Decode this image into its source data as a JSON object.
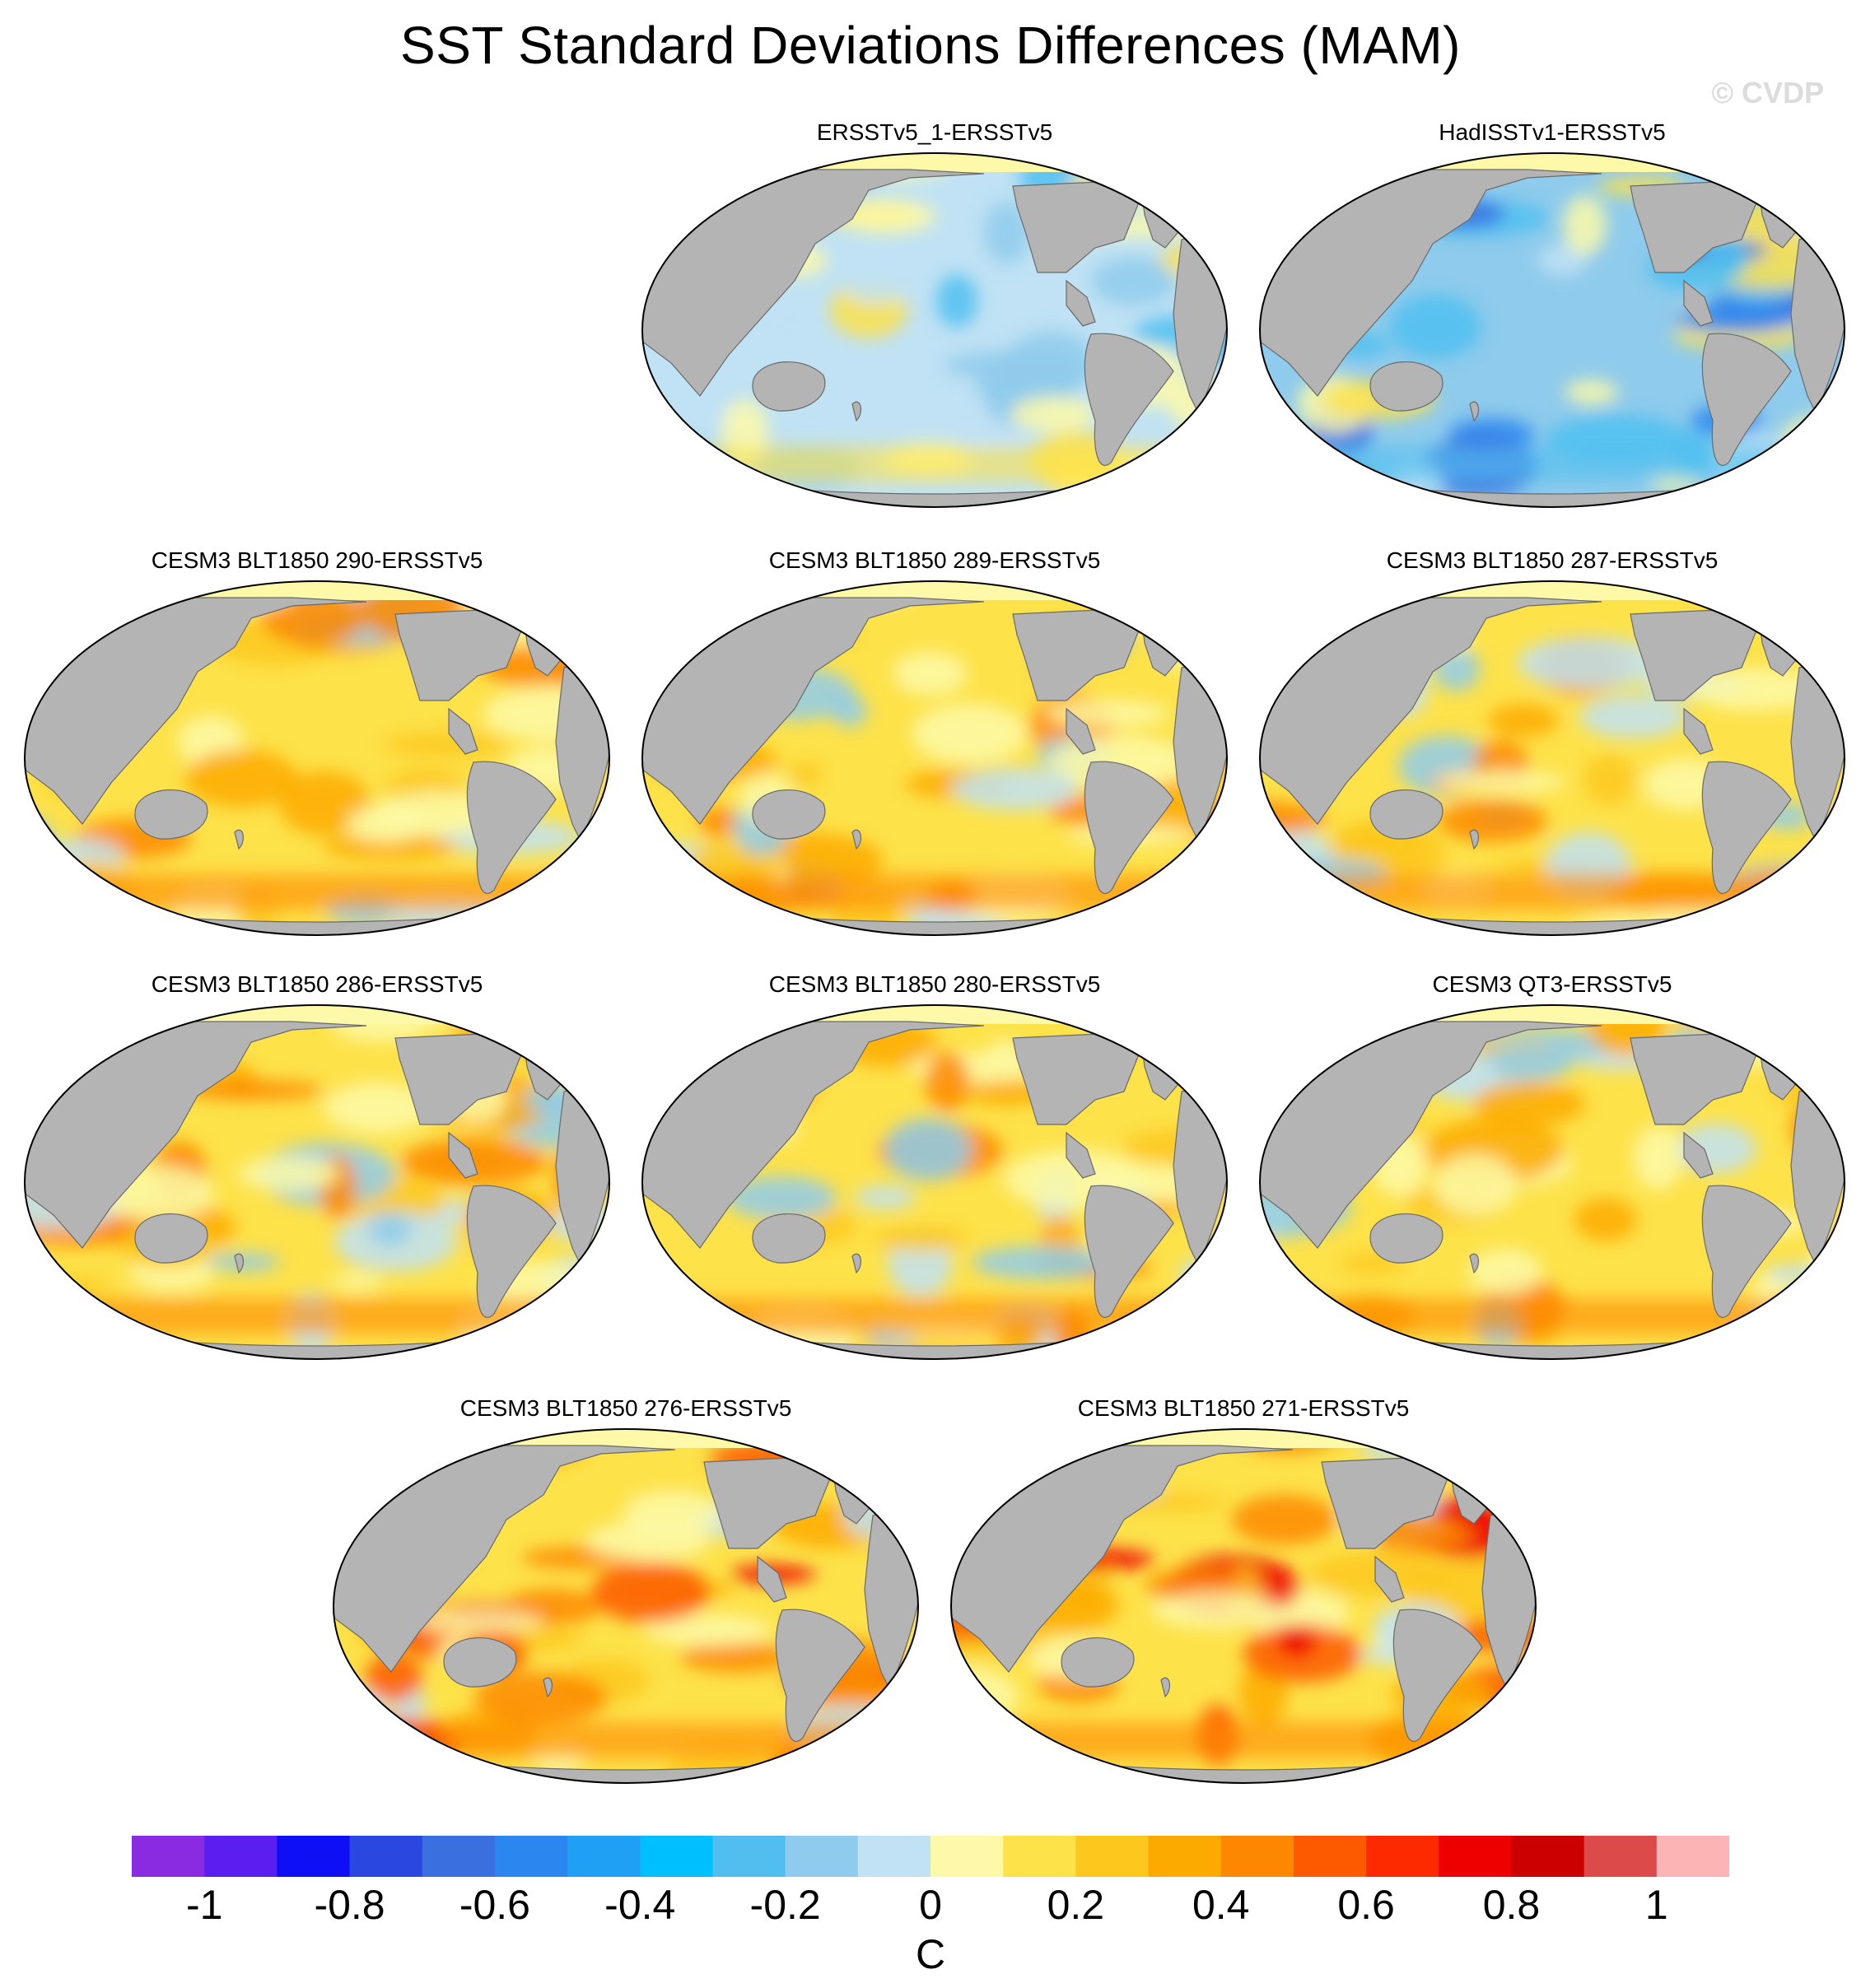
{
  "title": "SST Standard Deviations Differences (MAM)",
  "copyright": "© CVDP",
  "panels": [
    {
      "title": "ERSSTv5_1-ERSSTv5",
      "style": "cool"
    },
    {
      "title": "HadISSTv1-ERSSTv5",
      "style": "cooler"
    },
    {
      "title": "CESM3 BLT1850 290-ERSSTv5",
      "style": "warm"
    },
    {
      "title": "CESM3 BLT1850 289-ERSSTv5",
      "style": "warm"
    },
    {
      "title": "CESM3 BLT1850 287-ERSSTv5",
      "style": "warm"
    },
    {
      "title": "CESM3 BLT1850 286-ERSSTv5",
      "style": "warm"
    },
    {
      "title": "CESM3 BLT1850 280-ERSSTv5",
      "style": "warm"
    },
    {
      "title": "CESM3 QT3-ERSSTv5",
      "style": "warm"
    },
    {
      "title": "CESM3 BLT1850 276-ERSSTv5",
      "style": "warmer"
    },
    {
      "title": "CESM3 BLT1850 271-ERSSTv5",
      "style": "warmer"
    }
  ],
  "colorbar": {
    "colors": [
      "#8a2be2",
      "#5a1ef0",
      "#0f0ff5",
      "#2a48e0",
      "#3a6fe0",
      "#2b86f0",
      "#1fa0f5",
      "#00bfff",
      "#50bff0",
      "#8fcbec",
      "#c0e2f4",
      "#fdf9a8",
      "#fde24a",
      "#fdc81e",
      "#fdaa00",
      "#fd8800",
      "#fd5a00",
      "#fd2a00",
      "#ee0000",
      "#cc0000",
      "#dd4a4a",
      "#fdb4b4"
    ],
    "tick_labels": [
      "-1",
      "-0.8",
      "-0.6",
      "-0.4",
      "-0.2",
      "0",
      "0.2",
      "0.4",
      "0.6",
      "0.8",
      "1"
    ],
    "tick_values": [
      -1,
      -0.8,
      -0.6,
      -0.4,
      -0.2,
      0,
      0.2,
      0.4,
      0.6,
      0.8,
      1
    ],
    "min": -1.1,
    "max": 1.1,
    "units": "C"
  }
}
